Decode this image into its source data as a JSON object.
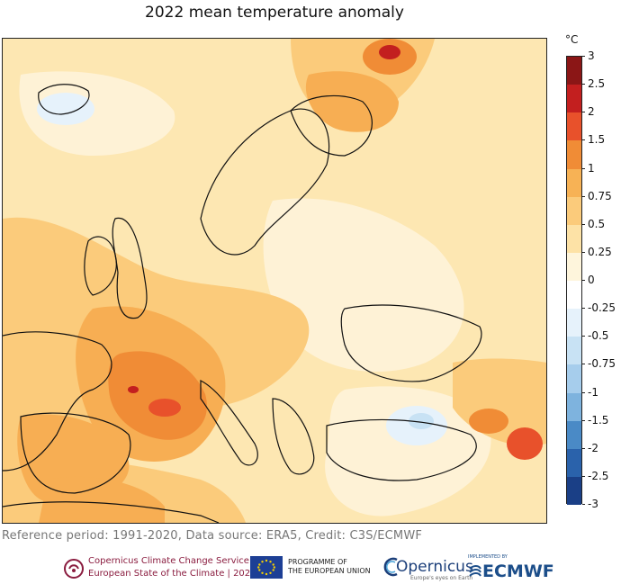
{
  "title": "2022 mean temperature anomaly",
  "colorbar": {
    "unit": "°C",
    "labels": [
      "3",
      "2.5",
      "2",
      "1.5",
      "1",
      "0.75",
      "0.5",
      "0.25",
      "0",
      "-0.25",
      "-0.5",
      "-0.75",
      "-1",
      "-1.5",
      "-2",
      "-2.5",
      "-3"
    ],
    "colors": [
      "#8b1616",
      "#c31f1f",
      "#e8512b",
      "#f08c36",
      "#f7b255",
      "#fbcb7b",
      "#fde2a6",
      "#fef5dc",
      "#ffffff",
      "#e6f2fb",
      "#c8e2f4",
      "#a6cdec",
      "#7eb3de",
      "#4a8ac6",
      "#2a62ab",
      "#1a3f86"
    ]
  },
  "map": {
    "anomaly_colors": {
      "warm_base": "#fde7b2",
      "warm_light": "#fef2d6",
      "warm_mid": "#fbcb7b",
      "warm_orange": "#f7ae53",
      "warm_strong": "#f08c36",
      "hot": "#e8512b",
      "very_hot": "#c31f1f",
      "cool_light": "#e6f2fb",
      "cool": "#c8e2f4"
    }
  },
  "footer": {
    "reference": "Reference period: 1991-2020, Data source: ERA5, Credit: C3S/ECMWF"
  },
  "logos": {
    "c3s_line1": "Copernicus Climate Change Service",
    "c3s_line2": "European State of the Climate | 2022",
    "eu_line1": "PROGRAMME OF",
    "eu_line2": "THE EUROPEAN UNION",
    "copernicus_word": "Opernicus",
    "copernicus_tag": "Europe's eyes on Earth",
    "ecmwf_top": "IMPLEMENTED BY",
    "ecmwf_word": "ECMWF"
  }
}
